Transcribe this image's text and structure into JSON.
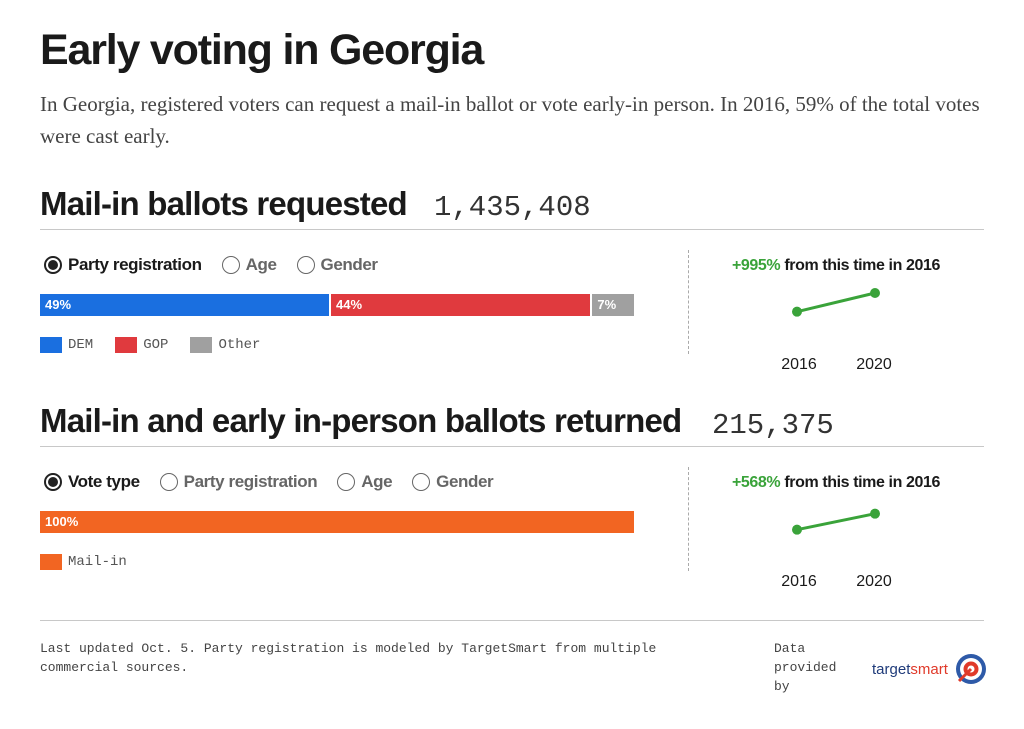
{
  "title": "Early voting in Georgia",
  "subtitle": "In Georgia, registered voters can request a mail-in ballot or vote early-in person. In 2016, 59% of the total votes were cast early.",
  "colors": {
    "dem": "#1a6fe0",
    "gop": "#e03a3e",
    "other": "#a0a0a0",
    "mail_in": "#f26522",
    "trend": "#3aa33a"
  },
  "chart_data": [
    {
      "type": "bar",
      "title": "Mail-in ballots requested",
      "total": "1,435,408",
      "filters": [
        "Party registration",
        "Age",
        "Gender"
      ],
      "selected_filter": "Party registration",
      "series": [
        {
          "name": "DEM",
          "value": 49,
          "label": "49%"
        },
        {
          "name": "GOP",
          "value": 44,
          "label": "44%"
        },
        {
          "name": "Other",
          "value": 7,
          "label": "7%"
        }
      ],
      "change": {
        "pct": "+995%",
        "text": "from this time in 2016"
      },
      "trend": {
        "type": "line",
        "x": [
          "2016",
          "2020"
        ],
        "values": [
          1,
          1.7
        ]
      }
    },
    {
      "type": "bar",
      "title": "Mail-in and early in-person ballots returned",
      "total": "215,375",
      "filters": [
        "Vote type",
        "Party registration",
        "Age",
        "Gender"
      ],
      "selected_filter": "Vote type",
      "series": [
        {
          "name": "Mail-in",
          "value": 100,
          "label": "100%"
        }
      ],
      "change": {
        "pct": "+568%",
        "text": "from this time in 2016"
      },
      "trend": {
        "type": "line",
        "x": [
          "2016",
          "2020"
        ],
        "values": [
          1,
          1.6
        ]
      }
    }
  ],
  "footnote": "Last updated Oct. 5. Party registration is modeled by TargetSmart from multiple commercial sources.",
  "provided_by": "Data provided by",
  "logo": {
    "part1": "target",
    "part2": "smart"
  }
}
